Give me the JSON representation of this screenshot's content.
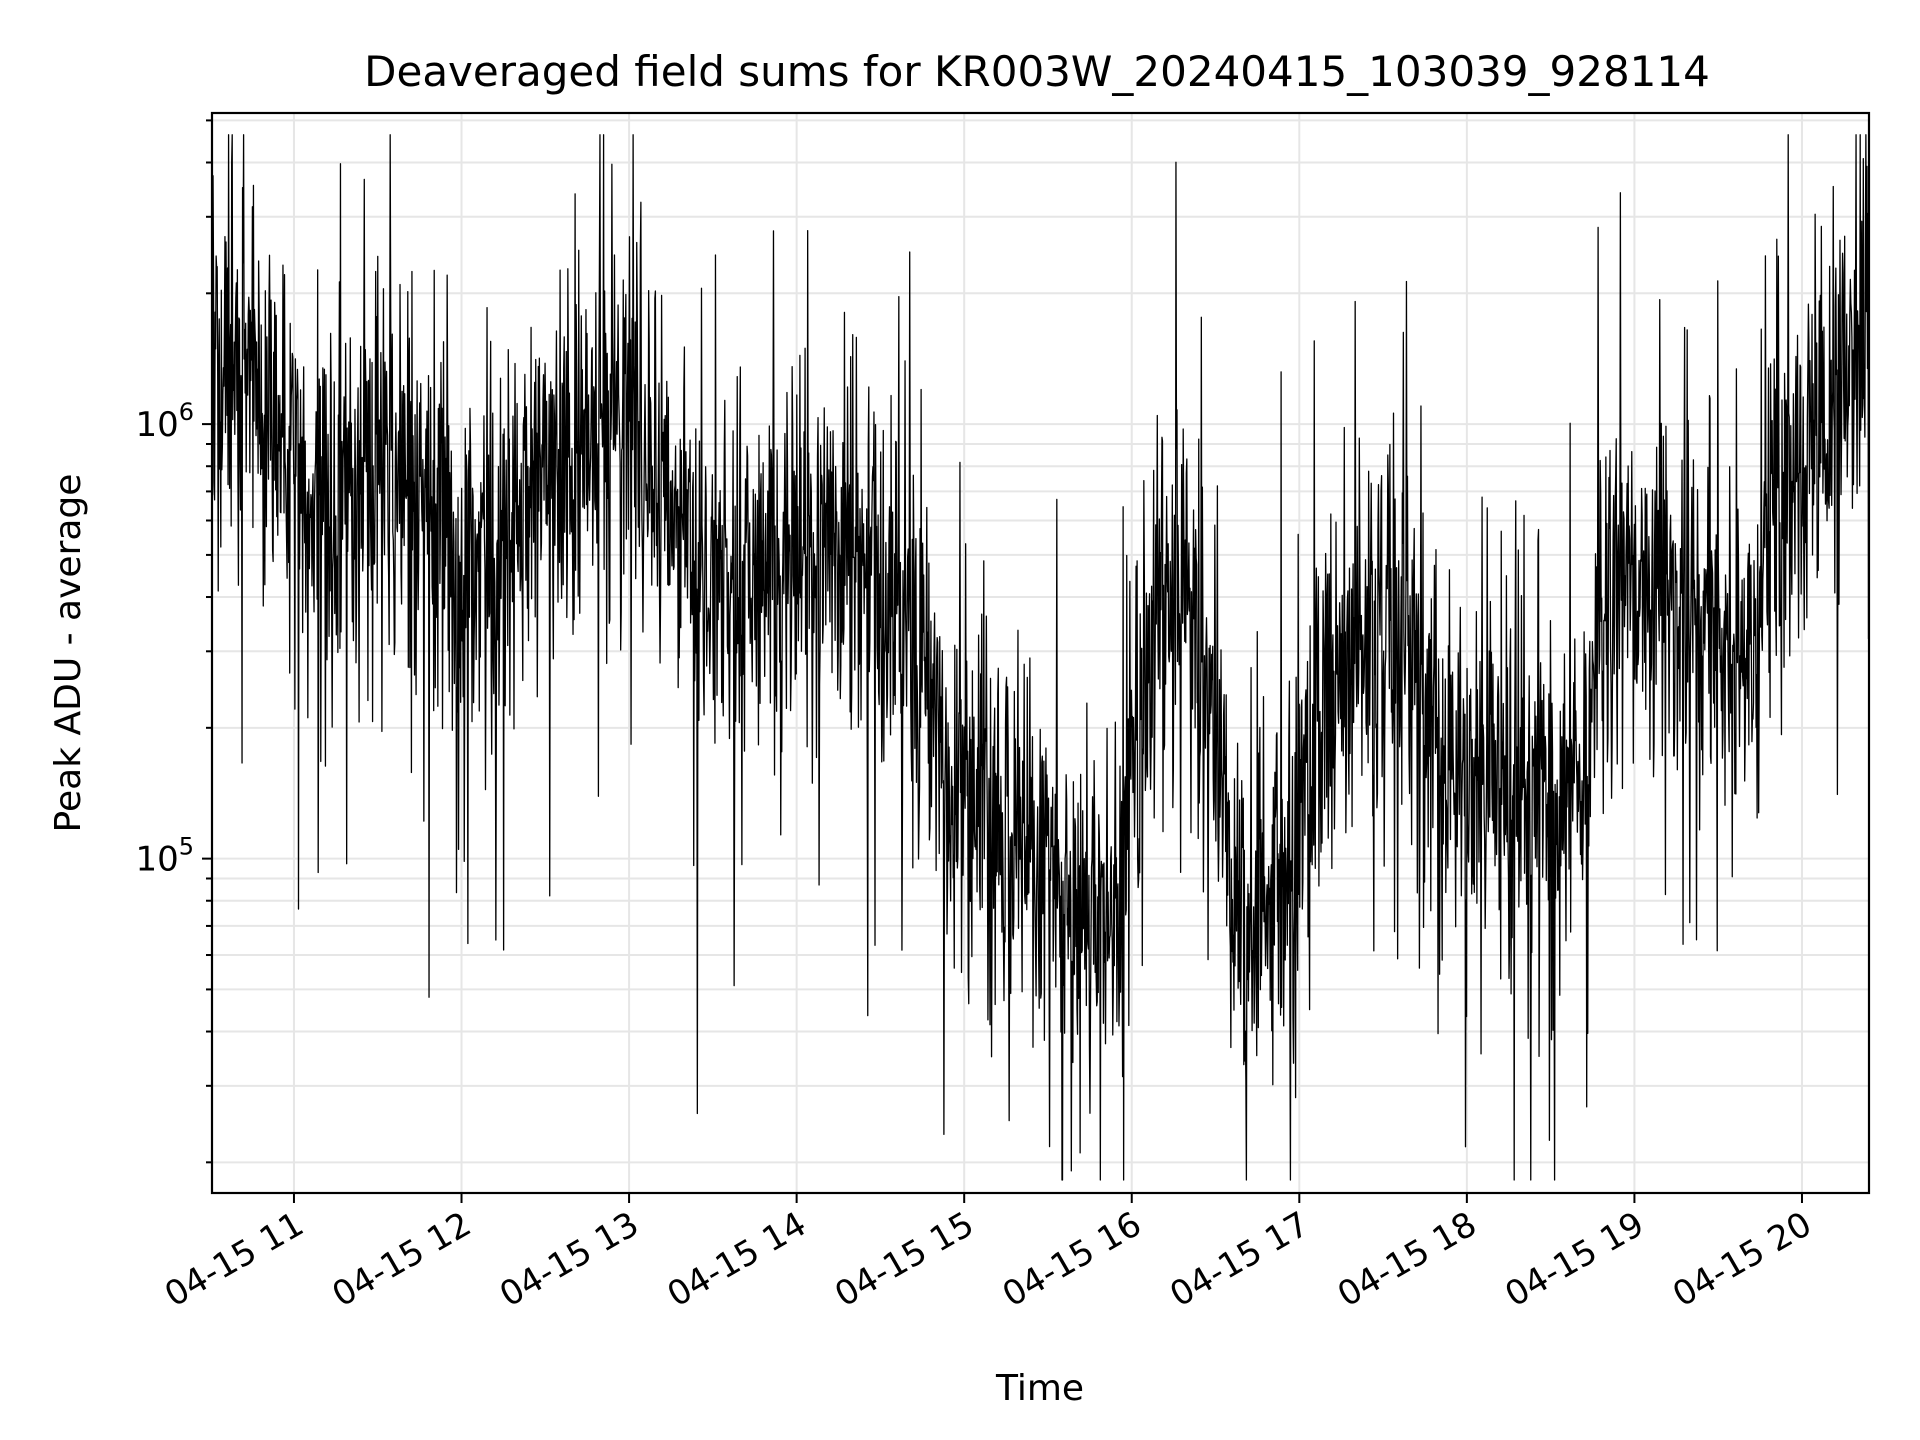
{
  "chart_data": {
    "type": "line",
    "title": "Deaveraged field sums for KR003W_20240415_103039_928114",
    "xlabel": "Time",
    "ylabel": "Peak ADU - average",
    "y_scale": "log",
    "grid": true,
    "grid_minor": true,
    "line_color": "#000000",
    "xlim": [
      "2024-04-15 10:30:39",
      "2024-04-15 20:24:00"
    ],
    "ylim": [
      17000,
      5200000
    ],
    "x_ticks": [
      "04-15 11",
      "04-15 12",
      "04-15 13",
      "04-15 14",
      "04-15 15",
      "04-15 16",
      "04-15 17",
      "04-15 18",
      "04-15 19",
      "04-15 20"
    ],
    "y_ticks": [
      {
        "value": 100000,
        "base": "10",
        "exp": "5"
      },
      {
        "value": 1000000,
        "base": "10",
        "exp": "6"
      }
    ],
    "series": [
      {
        "x": [
          "10:31",
          "10:42",
          "10:56",
          "11:10",
          "11:25",
          "11:40",
          "11:55",
          "12:10",
          "12:25",
          "12:40",
          "12:55",
          "13:10",
          "13:25",
          "13:40",
          "13:55",
          "14:10",
          "14:25",
          "14:40",
          "14:55",
          "15:10",
          "15:25",
          "15:40",
          "15:55",
          "16:10",
          "16:25",
          "16:40",
          "16:55",
          "17:10",
          "17:25",
          "17:40",
          "17:55",
          "18:10",
          "18:25",
          "18:40",
          "18:55",
          "19:10",
          "19:25",
          "19:40",
          "19:55",
          "20:10",
          "20:23"
        ],
        "y": [
          1200000,
          1600000,
          800000,
          650000,
          700000,
          800000,
          450000,
          500000,
          700000,
          900000,
          1300000,
          700000,
          450000,
          400000,
          450000,
          500000,
          450000,
          300000,
          150000,
          130000,
          100000,
          80000,
          70000,
          500000,
          300000,
          60000,
          100000,
          250000,
          350000,
          300000,
          150000,
          150000,
          120000,
          150000,
          500000,
          400000,
          350000,
          300000,
          700000,
          1000000,
          1700000
        ]
      }
    ]
  }
}
